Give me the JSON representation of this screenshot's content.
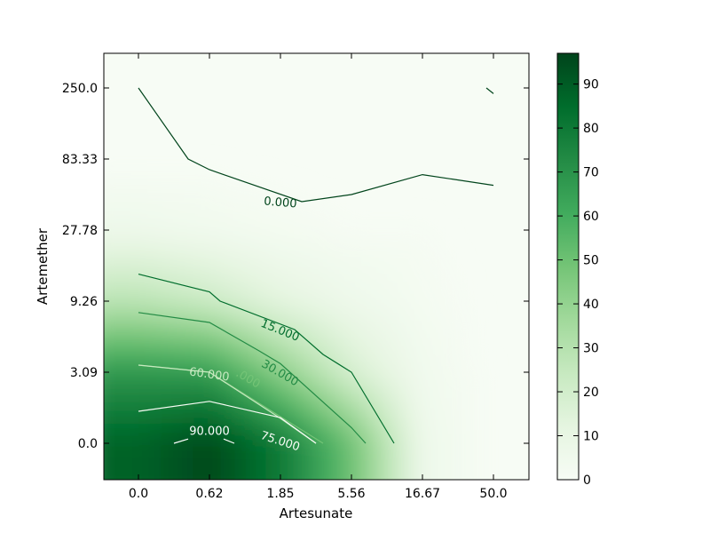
{
  "chart_data": {
    "type": "heatmap",
    "variant": "filled-contour-with-line-contours",
    "xlabel": "Artesunate",
    "ylabel": "Artemether",
    "x_categories": [
      "0.0",
      "0.62",
      "1.85",
      "5.56",
      "16.67",
      "50.0"
    ],
    "y_categories": [
      "0.0",
      "3.09",
      "9.26",
      "27.78",
      "83.33",
      "250.0"
    ],
    "z_matrix_rows_by_y_ascending": [
      [
        88,
        96,
        80,
        50,
        6,
        0
      ],
      [
        68,
        66,
        42,
        18,
        4,
        0
      ],
      [
        28,
        22,
        12,
        6,
        2,
        0
      ],
      [
        6,
        4,
        2,
        1,
        1,
        0
      ],
      [
        0,
        0,
        0,
        0,
        0,
        0
      ],
      [
        0,
        0,
        0,
        0,
        0,
        0
      ]
    ],
    "contours": [
      {
        "level_label": "0.000",
        "color": "#00441b",
        "points": [
          [
            0.0,
            5.0
          ],
          [
            0.7,
            4.0
          ],
          [
            1.0,
            3.85
          ],
          [
            2.3,
            3.4
          ],
          [
            3.0,
            3.5
          ],
          [
            4.0,
            3.78
          ],
          [
            5.0,
            3.63
          ]
        ],
        "label_at": [
          2.0,
          3.4
        ],
        "label_angle": 5
      },
      {
        "level_label": "0.000",
        "color": "#00441b",
        "points": [
          [
            4.9,
            5.0
          ],
          [
            5.0,
            4.92
          ]
        ]
      },
      {
        "level_label": "15.000",
        "color": "#006d2c",
        "points": [
          [
            0.0,
            2.38
          ],
          [
            1.0,
            2.13
          ],
          [
            1.15,
            2.0
          ],
          [
            2.2,
            1.6
          ],
          [
            2.6,
            1.25
          ],
          [
            3.0,
            1.0
          ],
          [
            3.6,
            0.0
          ]
        ],
        "label_at": [
          2.0,
          1.6
        ],
        "label_angle": 22
      },
      {
        "level_label": "30.000",
        "color": "#238b45",
        "points": [
          [
            0.0,
            1.84
          ],
          [
            1.0,
            1.7
          ],
          [
            1.7,
            1.3
          ],
          [
            2.0,
            1.12
          ],
          [
            3.0,
            0.22
          ],
          [
            3.2,
            0.0
          ]
        ],
        "label_at": [
          2.0,
          1.0
        ],
        "label_angle": 30
      },
      {
        "level_label": "45.000",
        "color": "#74c476",
        "points": [
          [
            0.0,
            1.1
          ],
          [
            1.0,
            1.0
          ],
          [
            2.6,
            0.0
          ]
        ],
        "label_at": [
          1.55,
          0.92
        ],
        "label_angle": 30,
        "label_text": ".000"
      },
      {
        "level_label": "60.000",
        "color": "#c7e9c0",
        "points": [
          [
            0.0,
            1.1
          ],
          [
            1.0,
            1.0
          ],
          [
            2.0,
            0.35
          ],
          [
            2.5,
            0.0
          ]
        ],
        "label_at": [
          1.0,
          0.98
        ],
        "label_angle": 8
      },
      {
        "level_label": "75.000",
        "color": "#f7fcf5",
        "points": [
          [
            0.0,
            0.45
          ],
          [
            1.0,
            0.59
          ],
          [
            2.0,
            0.36
          ],
          [
            2.5,
            0.0
          ]
        ],
        "label_at": [
          2.0,
          0.04
        ],
        "label_angle": 18
      },
      {
        "level_label": "90.000",
        "color": "#ffffff",
        "points": [
          [
            0.5,
            0.0
          ],
          [
            0.7,
            0.06
          ]
        ],
        "points2": [
          [
            1.2,
            0.06
          ],
          [
            1.35,
            0.0
          ]
        ],
        "label_at": [
          1.0,
          0.18
        ],
        "label_angle": 0
      }
    ],
    "colorbar": {
      "range": [
        0,
        97
      ],
      "ticks": [
        "0",
        "10",
        "20",
        "30",
        "40",
        "50",
        "60",
        "70",
        "80",
        "90"
      ],
      "colors": [
        "#f7fcf5",
        "#e5f5e0",
        "#c7e9c0",
        "#a1d99b",
        "#74c476",
        "#41ab5d",
        "#238b45",
        "#006d2c",
        "#00441b"
      ]
    }
  }
}
